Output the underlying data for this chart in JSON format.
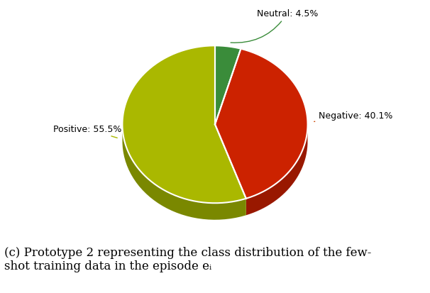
{
  "labels": [
    "Neutral",
    "Negative",
    "Positive"
  ],
  "values": [
    4.5,
    40.1,
    55.5
  ],
  "colors": [
    "#3a8c3a",
    "#cc2200",
    "#aab800"
  ],
  "dark_colors": [
    "#2a6c2a",
    "#991800",
    "#7a8800"
  ],
  "label_texts": [
    "Neutral: 4.5%",
    "Negative: 40.1%",
    "Positive: 55.5%"
  ],
  "wedge_edge_color": "white",
  "wedge_linewidth": 1.5,
  "startangle": 90,
  "caption": "(c) Prototype 2 representing the class distribution of the few-\nshot training data in the episode eᵢ",
  "caption_fontsize": 12,
  "fig_width": 6.06,
  "fig_height": 4.14,
  "dpi": 100
}
